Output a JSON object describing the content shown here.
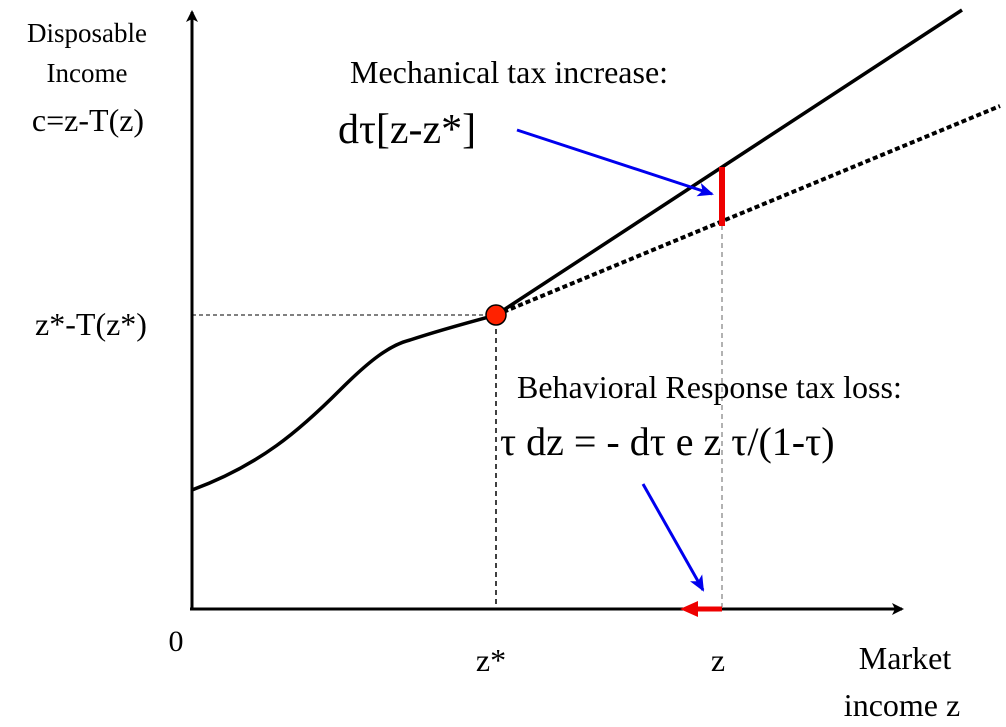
{
  "labels": {
    "y_axis_line1": "Disposable",
    "y_axis_line2": "Income",
    "y_axis_line3": "c=z-T(z)",
    "y_tick_kink": "z*-T(z*)",
    "origin": "0",
    "x_tick_zstar": "z*",
    "x_tick_z": "z",
    "x_axis_line1": "Market",
    "x_axis_line2": "income z"
  },
  "annotations": {
    "mechanical_title": "Mechanical tax increase:",
    "mechanical_formula": "dτ[z-z*]",
    "behavioral_title": "Behavioral Response tax loss:",
    "behavioral_formula": "τ dz = - dτ e z τ/(1-τ)"
  },
  "colors": {
    "axis": "#000000",
    "curve": "#000000",
    "arrow_blue": "#0000ee",
    "red": "#ee0000",
    "point_fill": "#ff2200",
    "guide_gray": "#999999"
  }
}
